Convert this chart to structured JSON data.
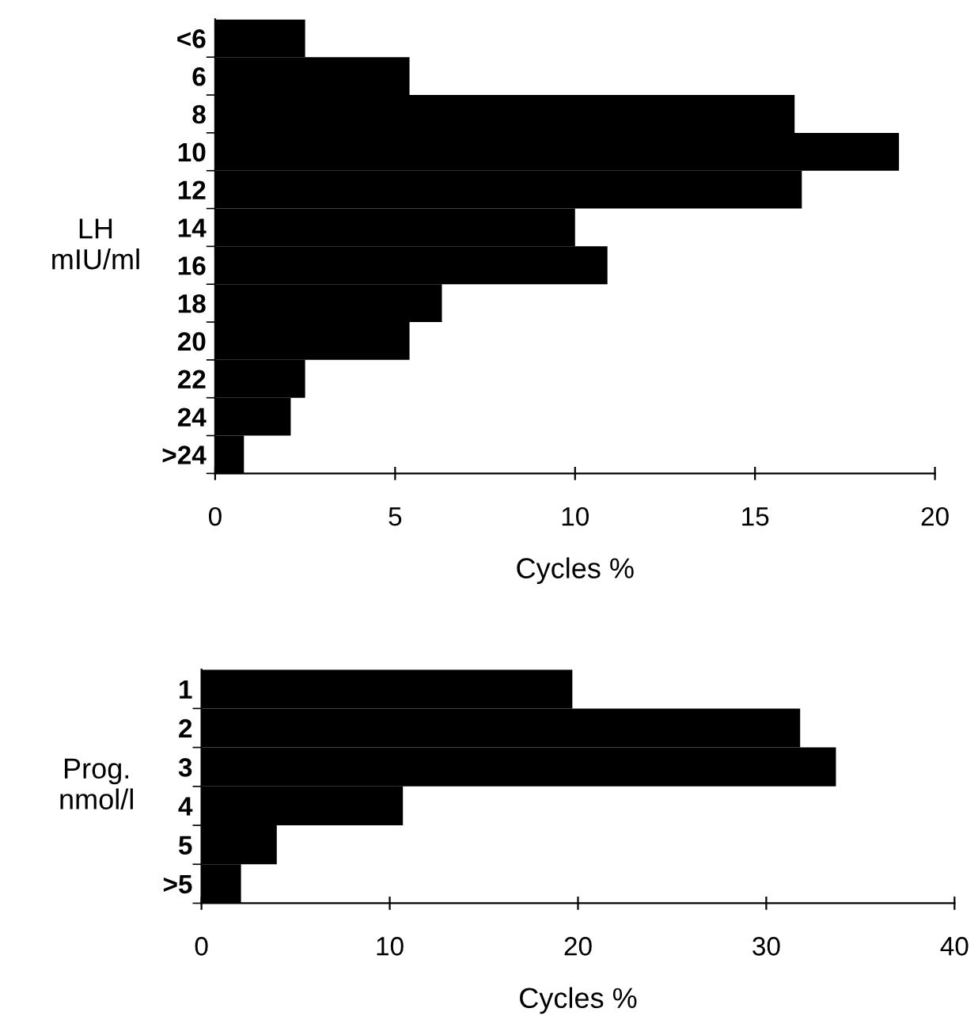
{
  "chart_data": [
    {
      "type": "bar",
      "orientation": "horizontal",
      "ylabel": "LH\nmIU/ml",
      "xlabel": "Cycles %",
      "categories": [
        "<6",
        "6",
        "8",
        "10",
        "12",
        "14",
        "16",
        "18",
        "20",
        "22",
        "24",
        ">24"
      ],
      "values": [
        2.5,
        5.4,
        16.1,
        19.0,
        16.3,
        10.0,
        10.9,
        6.3,
        5.4,
        2.5,
        2.1,
        0.8
      ],
      "color": "#000000",
      "xlim": [
        0,
        20
      ],
      "xticks": [
        0,
        5,
        10,
        15,
        20
      ],
      "grid": false,
      "legend": false
    },
    {
      "type": "bar",
      "orientation": "horizontal",
      "ylabel": "Prog.\nnmol/l",
      "xlabel": "Cycles %",
      "categories": [
        "1",
        "2",
        "3",
        "4",
        "5",
        ">5"
      ],
      "values": [
        19.7,
        31.8,
        33.7,
        10.7,
        4.0,
        2.1
      ],
      "color": "#000000",
      "xlim": [
        0,
        40
      ],
      "xticks": [
        0,
        10,
        20,
        30,
        40
      ],
      "grid": false,
      "legend": false
    }
  ]
}
